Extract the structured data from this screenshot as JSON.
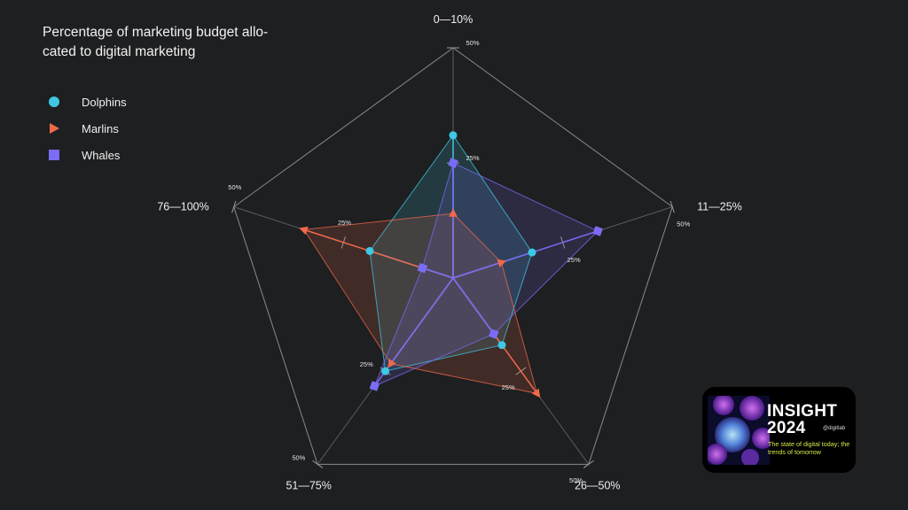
{
  "chart_data": {
    "type": "radar",
    "title": "Percentage of marketing budget allo-\ncated to digital marketing",
    "axes": [
      "0—10%",
      "11—25%",
      "26—50%",
      "51—75%",
      "76—100%"
    ],
    "range": [
      0,
      50
    ],
    "tick_labels": [
      "25%",
      "50%"
    ],
    "series": [
      {
        "name": "Dolphins",
        "color": "#3fc8e4",
        "marker": "circle",
        "values": [
          31,
          18,
          18,
          25,
          19
        ]
      },
      {
        "name": "Marlins",
        "color": "#f0694b",
        "marker": "triangle",
        "values": [
          14,
          11,
          31,
          23,
          34
        ]
      },
      {
        "name": "Whales",
        "color": "#7a6cf5",
        "marker": "square",
        "values": [
          25,
          33,
          15,
          29,
          7
        ]
      }
    ]
  },
  "badge": {
    "title_line1": "INSIGHT",
    "title_line2": "2024",
    "handle": "@digitlab",
    "subtitle": "The state of digital today; the trends of tomorrow"
  }
}
